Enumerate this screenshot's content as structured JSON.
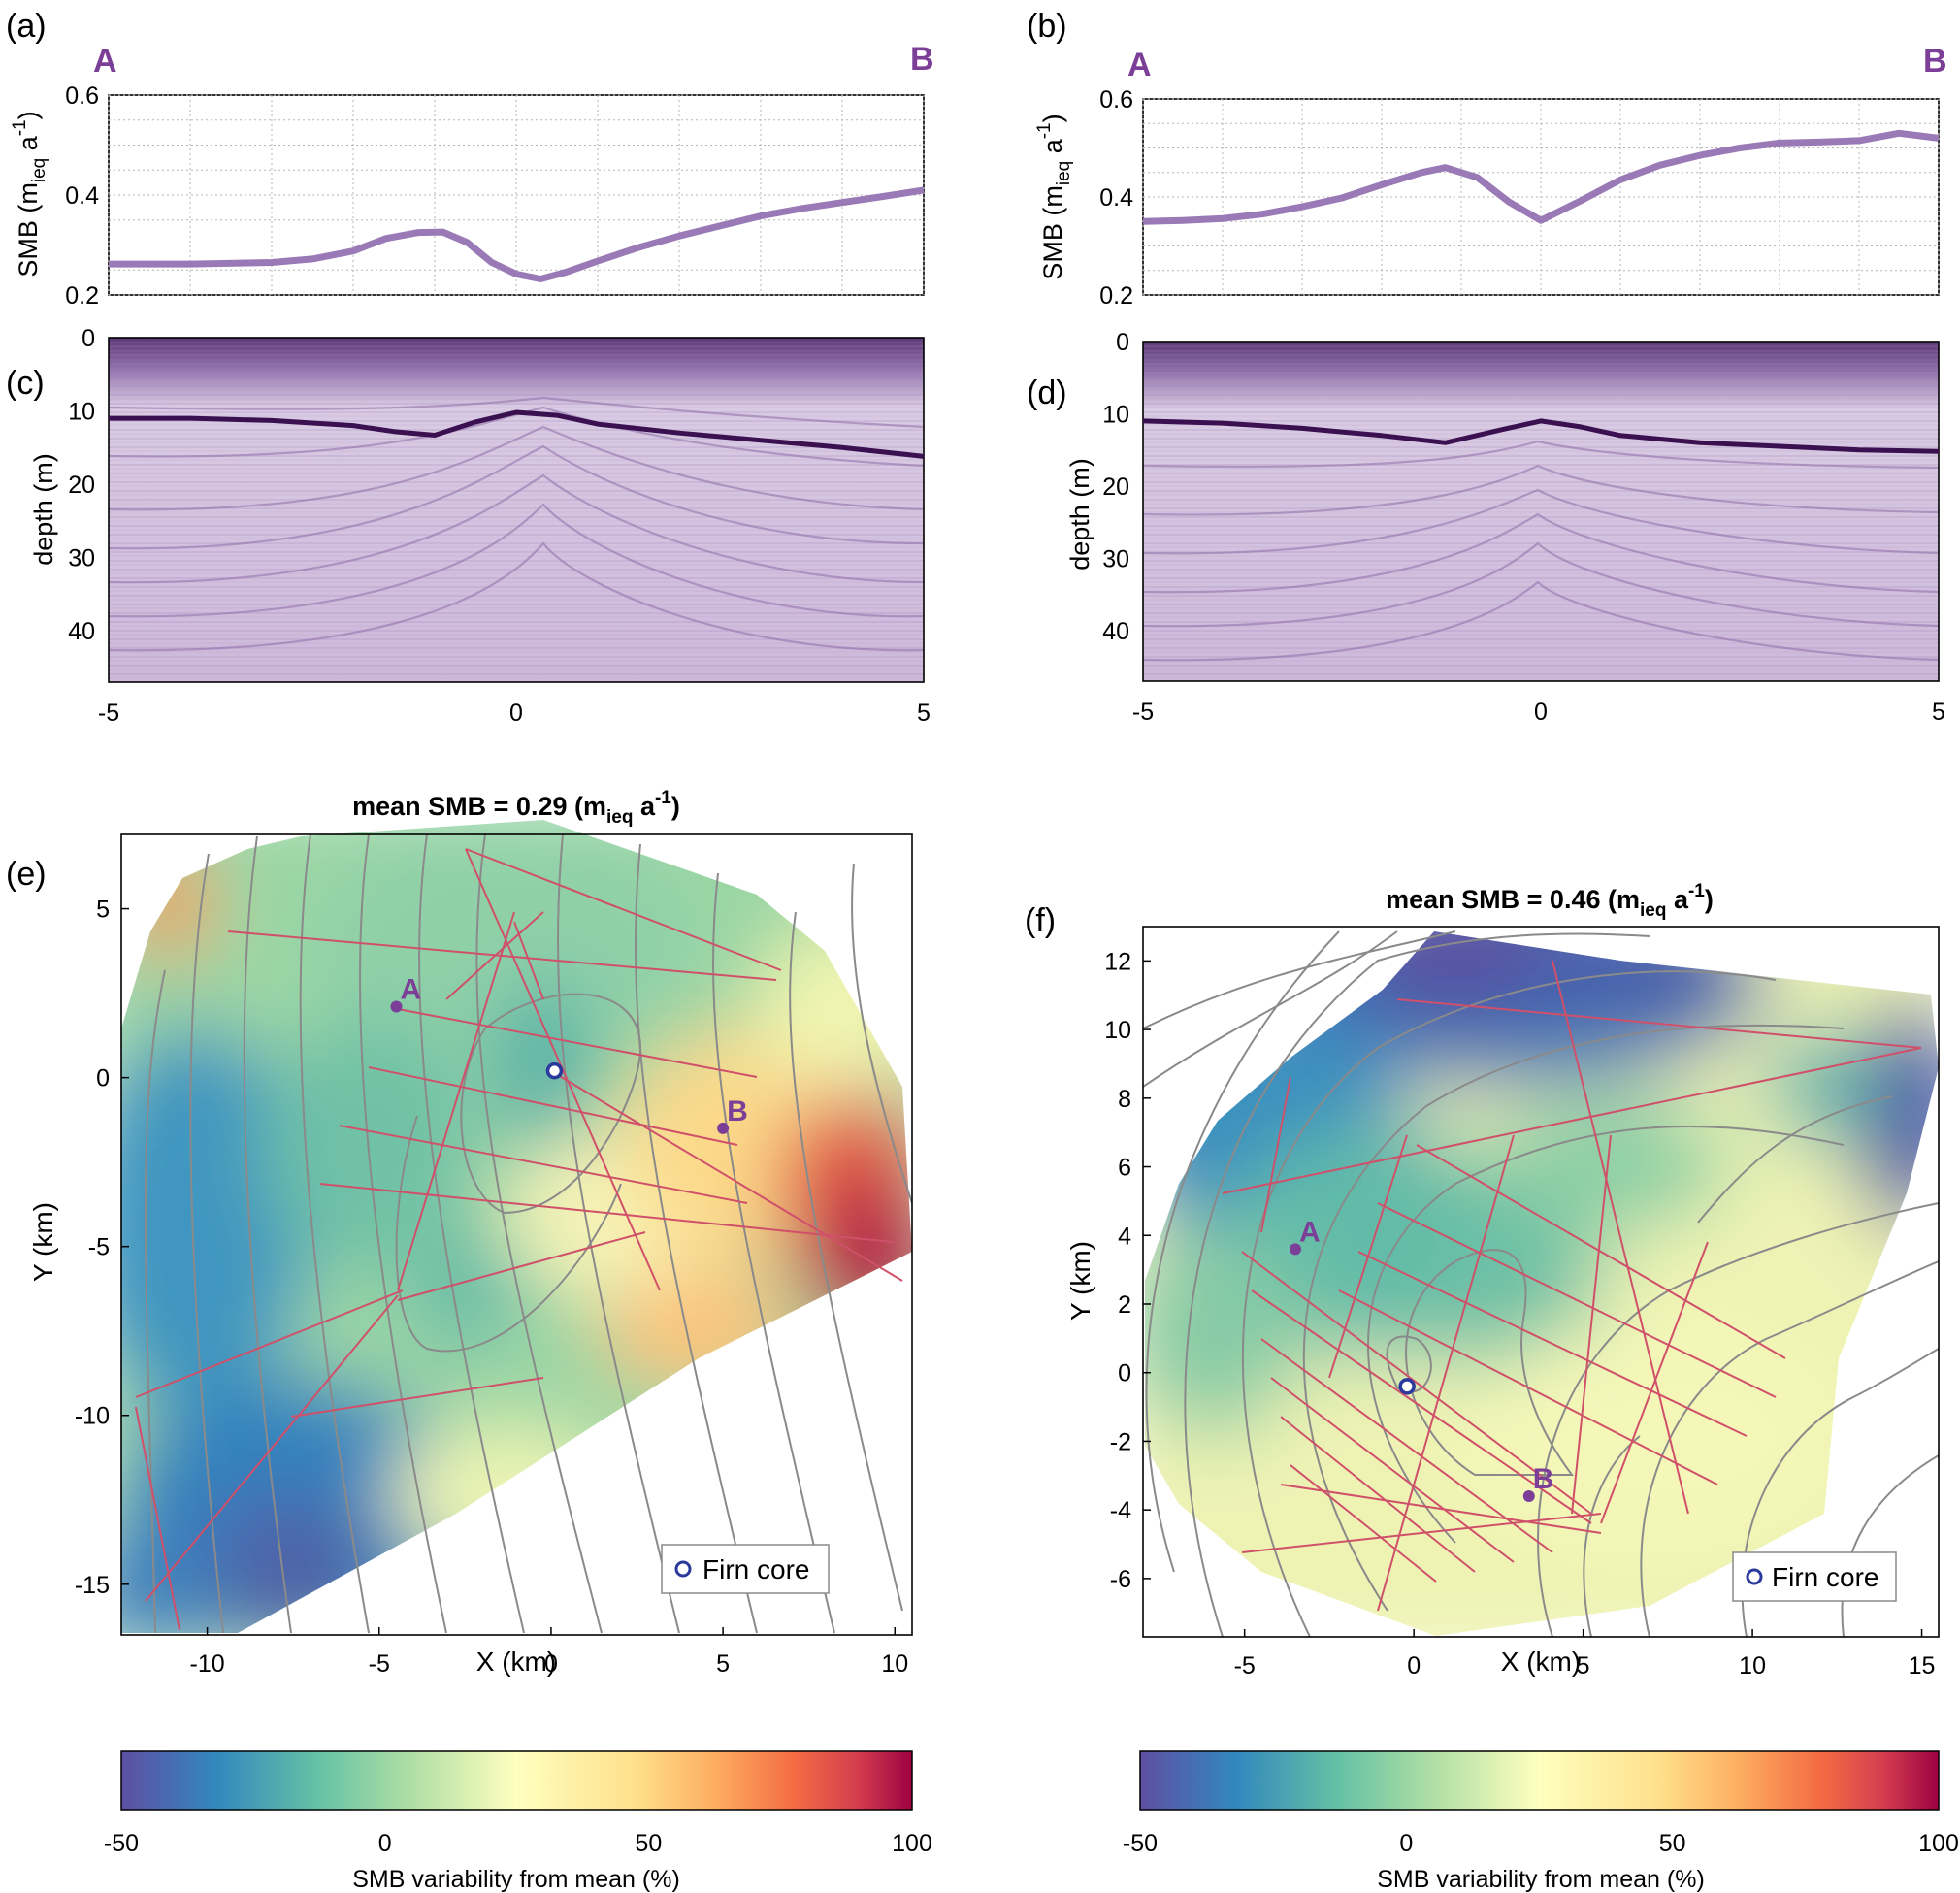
{
  "panel_labels": {
    "a": "(a)",
    "b": "(b)",
    "c": "(c)",
    "d": "(d)",
    "e": "(e)",
    "f": "(f)"
  },
  "profile_endpoints": {
    "start": "A",
    "end": "B"
  },
  "colors": {
    "smb_line": "#9a7ab6",
    "horizon_line": "#3a1050",
    "track": "#d0506a",
    "contour": "#8a8a8a",
    "point": "#7b3f98",
    "core_marker": "#2a3a9c"
  },
  "chart_data": [
    {
      "id": "a",
      "type": "line",
      "ylabel": "SMB (m_ieq a^-1)",
      "xlim": [
        -5,
        5
      ],
      "ylim": [
        0.2,
        0.6
      ],
      "yticks": [
        "0.2",
        "0.4",
        "0.6"
      ],
      "x": [
        -5,
        -4,
        -3,
        -2.5,
        -2,
        -1.6,
        -1.2,
        -0.9,
        -0.6,
        -0.3,
        0,
        0.3,
        0.6,
        1,
        1.5,
        2,
        2.5,
        3,
        3.5,
        4,
        4.5,
        5
      ],
      "y": [
        0.262,
        0.262,
        0.265,
        0.272,
        0.288,
        0.313,
        0.325,
        0.326,
        0.305,
        0.265,
        0.242,
        0.232,
        0.245,
        0.268,
        0.295,
        0.318,
        0.338,
        0.358,
        0.373,
        0.385,
        0.397,
        0.41
      ]
    },
    {
      "id": "b",
      "type": "line",
      "ylabel": "SMB (m_ieq a^-1)",
      "xlim": [
        -5,
        5
      ],
      "ylim": [
        0.2,
        0.6
      ],
      "yticks": [
        "0.2",
        "0.4",
        "0.6"
      ],
      "x": [
        -5,
        -4.5,
        -4,
        -3.5,
        -3,
        -2.5,
        -2,
        -1.5,
        -1.2,
        -0.8,
        -0.4,
        0,
        0.5,
        1,
        1.5,
        2,
        2.5,
        3,
        3.5,
        4,
        4.5,
        5
      ],
      "y": [
        0.35,
        0.352,
        0.356,
        0.365,
        0.38,
        0.398,
        0.425,
        0.45,
        0.46,
        0.44,
        0.39,
        0.352,
        0.392,
        0.435,
        0.465,
        0.485,
        0.5,
        0.51,
        0.512,
        0.515,
        0.53,
        0.52
      ]
    },
    {
      "id": "c",
      "type": "line",
      "ylabel": "depth (m)",
      "xlim": [
        -5,
        5
      ],
      "ylim": [
        0,
        47
      ],
      "xticks": [
        "-5",
        "0",
        "5"
      ],
      "yticks": [
        "0",
        "10",
        "20",
        "30",
        "40"
      ],
      "x": [
        -5,
        -4,
        -3,
        -2,
        -1.5,
        -1,
        -0.5,
        0,
        0.5,
        1,
        2,
        3,
        4,
        5
      ],
      "y": [
        11,
        11,
        11.3,
        12,
        12.8,
        13.3,
        11.5,
        10.2,
        10.6,
        11.8,
        13,
        14,
        15,
        16.2
      ]
    },
    {
      "id": "d",
      "type": "line",
      "ylabel": "depth (m)",
      "xlim": [
        -5,
        5
      ],
      "ylim": [
        0,
        47
      ],
      "xticks": [
        "-5",
        "0",
        "5"
      ],
      "yticks": [
        "0",
        "10",
        "20",
        "30",
        "40"
      ],
      "x": [
        -5,
        -4,
        -3,
        -2,
        -1.2,
        -0.5,
        0,
        0.5,
        1,
        2,
        3,
        4,
        5
      ],
      "y": [
        11,
        11.3,
        12,
        13,
        14,
        12.2,
        11,
        11.8,
        13,
        14,
        14.5,
        15,
        15.2
      ]
    },
    {
      "id": "e",
      "type": "heatmap",
      "title": "mean SMB = 0.29 (m_ieq a^-1)",
      "xlabel": "X (km)",
      "ylabel": "Y (km)",
      "xlim": [
        -12.5,
        10.5
      ],
      "ylim": [
        -16.5,
        7.2
      ],
      "xticks": [
        "-10",
        "-5",
        "0",
        "5",
        "10"
      ],
      "yticks": [
        "-15",
        "-10",
        "-5",
        "0",
        "5"
      ],
      "points": [
        {
          "label": "A",
          "x": -4.5,
          "y": 2.1
        },
        {
          "label": "B",
          "x": 5.0,
          "y": -1.5
        }
      ],
      "firn_core": {
        "x": 0.1,
        "y": 0.2
      },
      "legend": "Firn core",
      "colorbar": {
        "label": "SMB variability from mean (%)",
        "min": -50,
        "max": 100,
        "ticks": [
          "-50",
          "0",
          "50",
          "100"
        ]
      }
    },
    {
      "id": "f",
      "type": "heatmap",
      "title": "mean SMB = 0.46 (m_ieq a^-1)",
      "xlabel": "X (km)",
      "ylabel": "Y (km)",
      "xlim": [
        -8,
        15.5
      ],
      "ylim": [
        -7.7,
        13
      ],
      "xticks": [
        "-5",
        "0",
        "5",
        "10",
        "15"
      ],
      "yticks": [
        "-6",
        "-4",
        "-2",
        "0",
        "2",
        "4",
        "6",
        "8",
        "10",
        "12"
      ],
      "points": [
        {
          "label": "A",
          "x": -3.5,
          "y": 3.6
        },
        {
          "label": "B",
          "x": 3.4,
          "y": -3.6
        }
      ],
      "firn_core": {
        "x": -0.2,
        "y": -0.4
      },
      "legend": "Firn core",
      "colorbar": {
        "label": "SMB variability from mean (%)",
        "min": -50,
        "max": 100,
        "ticks": [
          "-50",
          "0",
          "50",
          "100"
        ]
      }
    }
  ]
}
